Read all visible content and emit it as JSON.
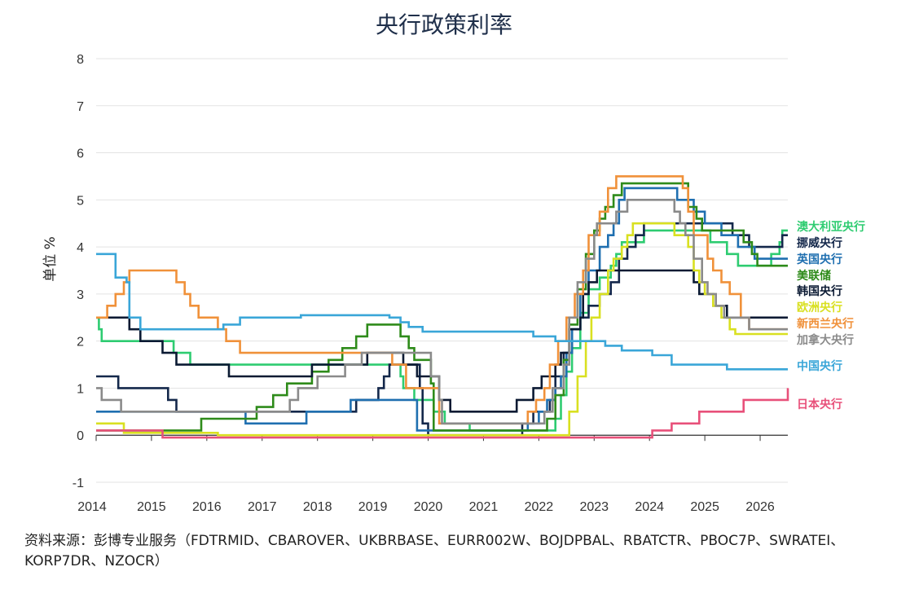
{
  "chart_data": {
    "type": "line",
    "title": "央行政策利率",
    "ylabel": "单位 %",
    "xlabel": "",
    "xlim": [
      2014.0,
      2026.5
    ],
    "ylim": [
      -1,
      8
    ],
    "yticks": [
      -1,
      0,
      1,
      2,
      3,
      4,
      5,
      6,
      7,
      8
    ],
    "xticks": [
      "2014",
      "2015",
      "2016",
      "2017",
      "2018",
      "2019",
      "2020",
      "2021",
      "2022",
      "2023",
      "2024",
      "2025",
      "2026"
    ],
    "grid": true,
    "legend": "right, labels at line ends",
    "series": [
      {
        "name": "澳大利亚央行",
        "color": "#2ecc71",
        "points": [
          [
            2014.0,
            2.5
          ],
          [
            2014.05,
            2.25
          ],
          [
            2014.1,
            2.0
          ],
          [
            2015.4,
            1.75
          ],
          [
            2015.7,
            1.5
          ],
          [
            2017.4,
            1.5
          ],
          [
            2019.4,
            1.5
          ],
          [
            2019.5,
            1.25
          ],
          [
            2019.55,
            1.0
          ],
          [
            2019.75,
            0.75
          ],
          [
            2020.1,
            0.5
          ],
          [
            2020.3,
            0.25
          ],
          [
            2020.75,
            0.1
          ],
          [
            2022.25,
            0.1
          ],
          [
            2022.3,
            0.35
          ],
          [
            2022.4,
            0.85
          ],
          [
            2022.5,
            1.35
          ],
          [
            2022.6,
            1.85
          ],
          [
            2022.75,
            2.6
          ],
          [
            2022.9,
            3.1
          ],
          [
            2023.1,
            3.35
          ],
          [
            2023.3,
            3.6
          ],
          [
            2023.4,
            3.85
          ],
          [
            2023.5,
            4.1
          ],
          [
            2023.9,
            4.35
          ],
          [
            2025.1,
            4.1
          ],
          [
            2025.4,
            3.85
          ],
          [
            2025.6,
            3.6
          ],
          [
            2026.2,
            3.85
          ],
          [
            2026.35,
            4.1
          ],
          [
            2026.4,
            4.35
          ]
        ]
      },
      {
        "name": "挪威央行",
        "color": "#14284b",
        "points": [
          [
            2014.0,
            1.25
          ],
          [
            2014.35,
            1.25
          ],
          [
            2014.4,
            1.0
          ],
          [
            2015.3,
            0.75
          ],
          [
            2015.45,
            0.5
          ],
          [
            2015.9,
            0.5
          ],
          [
            2017.5,
            0.5
          ],
          [
            2018.7,
            0.75
          ],
          [
            2019.1,
            1.0
          ],
          [
            2019.2,
            1.25
          ],
          [
            2019.3,
            1.5
          ],
          [
            2019.7,
            1.5
          ],
          [
            2019.85,
            1.0
          ],
          [
            2019.9,
            0.25
          ],
          [
            2020.0,
            0.0
          ],
          [
            2021.4,
            0.0
          ],
          [
            2021.7,
            0.25
          ],
          [
            2021.9,
            0.5
          ],
          [
            2022.2,
            0.75
          ],
          [
            2022.3,
            1.25
          ],
          [
            2022.45,
            1.75
          ],
          [
            2022.6,
            2.25
          ],
          [
            2022.75,
            2.5
          ],
          [
            2022.9,
            2.75
          ],
          [
            2023.1,
            3.0
          ],
          [
            2023.3,
            3.25
          ],
          [
            2023.45,
            3.75
          ],
          [
            2023.6,
            4.0
          ],
          [
            2023.75,
            4.25
          ],
          [
            2023.9,
            4.5
          ],
          [
            2025.5,
            4.25
          ],
          [
            2025.8,
            4.0
          ],
          [
            2026.3,
            4.0
          ],
          [
            2026.4,
            4.25
          ]
        ]
      },
      {
        "name": "英国央行",
        "color": "#1f6fb0",
        "points": [
          [
            2014.0,
            0.5
          ],
          [
            2015.7,
            0.5
          ],
          [
            2016.7,
            0.25
          ],
          [
            2017.8,
            0.5
          ],
          [
            2018.6,
            0.75
          ],
          [
            2019.7,
            0.75
          ],
          [
            2019.8,
            0.1
          ],
          [
            2021.6,
            0.1
          ],
          [
            2021.8,
            0.25
          ],
          [
            2022.0,
            0.5
          ],
          [
            2022.15,
            0.75
          ],
          [
            2022.3,
            1.0
          ],
          [
            2022.4,
            1.25
          ],
          [
            2022.5,
            1.75
          ],
          [
            2022.6,
            2.25
          ],
          [
            2022.75,
            3.0
          ],
          [
            2022.9,
            3.5
          ],
          [
            2023.1,
            4.0
          ],
          [
            2023.25,
            4.25
          ],
          [
            2023.35,
            4.5
          ],
          [
            2023.45,
            5.0
          ],
          [
            2023.55,
            5.25
          ],
          [
            2024.5,
            5.0
          ],
          [
            2024.8,
            4.75
          ],
          [
            2025.0,
            4.5
          ],
          [
            2025.3,
            4.25
          ],
          [
            2025.6,
            4.0
          ],
          [
            2025.9,
            3.75
          ],
          [
            2026.5,
            3.75
          ]
        ]
      },
      {
        "name": "美联储",
        "color": "#2e8b1a",
        "points": [
          [
            2014.0,
            0.1
          ],
          [
            2015.9,
            0.35
          ],
          [
            2016.9,
            0.6
          ],
          [
            2017.2,
            0.85
          ],
          [
            2017.45,
            1.1
          ],
          [
            2017.9,
            1.35
          ],
          [
            2018.2,
            1.6
          ],
          [
            2018.45,
            1.85
          ],
          [
            2018.7,
            2.1
          ],
          [
            2018.9,
            2.35
          ],
          [
            2019.5,
            2.1
          ],
          [
            2019.65,
            1.85
          ],
          [
            2019.75,
            1.6
          ],
          [
            2020.05,
            1.1
          ],
          [
            2020.1,
            0.1
          ],
          [
            2022.15,
            0.35
          ],
          [
            2022.3,
            0.85
          ],
          [
            2022.45,
            1.6
          ],
          [
            2022.55,
            2.35
          ],
          [
            2022.7,
            3.1
          ],
          [
            2022.85,
            3.85
          ],
          [
            2023.0,
            4.35
          ],
          [
            2023.1,
            4.6
          ],
          [
            2023.2,
            4.85
          ],
          [
            2023.35,
            5.1
          ],
          [
            2023.5,
            5.35
          ],
          [
            2024.7,
            4.85
          ],
          [
            2024.85,
            4.6
          ],
          [
            2024.95,
            4.35
          ],
          [
            2025.7,
            4.1
          ],
          [
            2025.85,
            3.85
          ],
          [
            2025.95,
            3.6
          ],
          [
            2026.5,
            3.6
          ]
        ]
      },
      {
        "name": "韩国央行",
        "color": "#0b1a33",
        "points": [
          [
            2014.0,
            2.5
          ],
          [
            2014.6,
            2.25
          ],
          [
            2014.8,
            2.0
          ],
          [
            2015.2,
            1.75
          ],
          [
            2015.45,
            1.5
          ],
          [
            2016.4,
            1.25
          ],
          [
            2017.9,
            1.5
          ],
          [
            2018.9,
            1.75
          ],
          [
            2019.55,
            1.5
          ],
          [
            2019.8,
            1.25
          ],
          [
            2020.2,
            0.75
          ],
          [
            2020.4,
            0.5
          ],
          [
            2021.6,
            0.75
          ],
          [
            2021.9,
            1.0
          ],
          [
            2022.05,
            1.25
          ],
          [
            2022.3,
            1.5
          ],
          [
            2022.4,
            1.75
          ],
          [
            2022.55,
            2.25
          ],
          [
            2022.75,
            2.5
          ],
          [
            2022.8,
            3.0
          ],
          [
            2022.9,
            3.25
          ],
          [
            2023.05,
            3.5
          ],
          [
            2024.8,
            3.25
          ],
          [
            2024.9,
            3.0
          ],
          [
            2025.15,
            2.75
          ],
          [
            2025.4,
            2.5
          ],
          [
            2026.5,
            2.5
          ]
        ]
      },
      {
        "name": "欧洲央行",
        "color": "#d9e021",
        "points": [
          [
            2014.0,
            0.25
          ],
          [
            2014.5,
            0.05
          ],
          [
            2015.2,
            0.05
          ],
          [
            2016.2,
            0.0
          ],
          [
            2022.5,
            0.0
          ],
          [
            2022.55,
            0.5
          ],
          [
            2022.7,
            1.25
          ],
          [
            2022.85,
            2.0
          ],
          [
            2022.95,
            2.5
          ],
          [
            2023.1,
            3.0
          ],
          [
            2023.25,
            3.5
          ],
          [
            2023.35,
            3.75
          ],
          [
            2023.5,
            4.0
          ],
          [
            2023.6,
            4.25
          ],
          [
            2023.7,
            4.5
          ],
          [
            2024.45,
            4.25
          ],
          [
            2024.7,
            4.0
          ],
          [
            2024.8,
            3.5
          ],
          [
            2024.9,
            3.25
          ],
          [
            2025.0,
            3.0
          ],
          [
            2025.15,
            2.75
          ],
          [
            2025.3,
            2.5
          ],
          [
            2025.45,
            2.25
          ],
          [
            2025.55,
            2.15
          ],
          [
            2026.5,
            2.15
          ]
        ]
      },
      {
        "name": "新西兰央行",
        "color": "#f0913a",
        "points": [
          [
            2014.0,
            2.5
          ],
          [
            2014.2,
            2.75
          ],
          [
            2014.35,
            3.0
          ],
          [
            2014.5,
            3.25
          ],
          [
            2014.6,
            3.5
          ],
          [
            2015.45,
            3.25
          ],
          [
            2015.6,
            3.0
          ],
          [
            2015.7,
            2.75
          ],
          [
            2015.85,
            2.5
          ],
          [
            2016.2,
            2.25
          ],
          [
            2016.35,
            2.0
          ],
          [
            2016.6,
            1.75
          ],
          [
            2018.8,
            1.75
          ],
          [
            2019.35,
            1.5
          ],
          [
            2019.6,
            1.0
          ],
          [
            2020.2,
            0.25
          ],
          [
            2021.6,
            0.25
          ],
          [
            2021.8,
            0.5
          ],
          [
            2021.95,
            0.75
          ],
          [
            2022.1,
            1.0
          ],
          [
            2022.2,
            1.5
          ],
          [
            2022.35,
            2.0
          ],
          [
            2022.5,
            2.5
          ],
          [
            2022.65,
            3.0
          ],
          [
            2022.8,
            3.5
          ],
          [
            2022.9,
            4.25
          ],
          [
            2023.1,
            4.75
          ],
          [
            2023.25,
            5.25
          ],
          [
            2023.4,
            5.5
          ],
          [
            2024.6,
            5.25
          ],
          [
            2024.7,
            4.75
          ],
          [
            2024.8,
            4.25
          ],
          [
            2025.05,
            3.75
          ],
          [
            2025.15,
            3.5
          ],
          [
            2025.3,
            3.25
          ],
          [
            2025.45,
            3.0
          ],
          [
            2025.65,
            2.5
          ],
          [
            2025.8,
            2.25
          ],
          [
            2026.5,
            2.25
          ]
        ]
      },
      {
        "name": "加拿大央行",
        "color": "#8a8a8a",
        "points": [
          [
            2014.0,
            1.0
          ],
          [
            2014.05,
            1.0
          ],
          [
            2014.1,
            0.75
          ],
          [
            2014.4,
            0.75
          ],
          [
            2014.45,
            0.5
          ],
          [
            2017.5,
            0.75
          ],
          [
            2017.65,
            1.0
          ],
          [
            2018.0,
            1.25
          ],
          [
            2018.5,
            1.5
          ],
          [
            2018.8,
            1.75
          ],
          [
            2020.05,
            1.25
          ],
          [
            2020.2,
            0.75
          ],
          [
            2020.25,
            0.25
          ],
          [
            2022.1,
            0.5
          ],
          [
            2022.25,
            1.0
          ],
          [
            2022.45,
            1.5
          ],
          [
            2022.55,
            2.5
          ],
          [
            2022.7,
            3.25
          ],
          [
            2022.85,
            3.75
          ],
          [
            2023.0,
            4.25
          ],
          [
            2023.05,
            4.5
          ],
          [
            2023.4,
            4.75
          ],
          [
            2023.6,
            5.0
          ],
          [
            2024.45,
            4.75
          ],
          [
            2024.55,
            4.5
          ],
          [
            2024.65,
            4.25
          ],
          [
            2024.8,
            3.75
          ],
          [
            2024.95,
            3.25
          ],
          [
            2025.05,
            3.0
          ],
          [
            2025.2,
            2.75
          ],
          [
            2025.35,
            2.5
          ],
          [
            2025.8,
            2.25
          ],
          [
            2026.5,
            2.25
          ]
        ]
      },
      {
        "name": "中国央行",
        "color": "#3aa6d8",
        "points": [
          [
            2014.0,
            3.85
          ],
          [
            2014.3,
            3.85
          ],
          [
            2014.35,
            3.35
          ],
          [
            2014.5,
            3.35
          ],
          [
            2014.55,
            3.25
          ],
          [
            2014.6,
            2.5
          ],
          [
            2014.8,
            2.25
          ],
          [
            2015.6,
            2.25
          ],
          [
            2016.1,
            2.25
          ],
          [
            2016.3,
            2.35
          ],
          [
            2016.6,
            2.5
          ],
          [
            2017.7,
            2.55
          ],
          [
            2019.3,
            2.5
          ],
          [
            2019.5,
            2.4
          ],
          [
            2019.65,
            2.3
          ],
          [
            2019.9,
            2.2
          ],
          [
            2020.1,
            2.2
          ],
          [
            2021.9,
            2.1
          ],
          [
            2022.3,
            2.0
          ],
          [
            2023.2,
            1.9
          ],
          [
            2023.5,
            1.8
          ],
          [
            2024.05,
            1.7
          ],
          [
            2024.4,
            1.5
          ],
          [
            2024.75,
            1.5
          ],
          [
            2025.4,
            1.4
          ],
          [
            2026.5,
            1.4
          ]
        ]
      },
      {
        "name": "日本央行",
        "color": "#e8507a",
        "points": [
          [
            2014.0,
            0.1
          ],
          [
            2015.15,
            0.1
          ],
          [
            2015.2,
            -0.05
          ],
          [
            2022.1,
            -0.05
          ],
          [
            2024.0,
            -0.05
          ],
          [
            2024.05,
            0.1
          ],
          [
            2024.4,
            0.25
          ],
          [
            2024.9,
            0.5
          ],
          [
            2025.55,
            0.5
          ],
          [
            2025.7,
            0.75
          ],
          [
            2026.45,
            0.75
          ],
          [
            2026.5,
            1.0
          ]
        ]
      }
    ]
  },
  "source_text": "资料来源：彭博专业服务（FDTRMID、CBAROVER、UKBRBASE、EURR002W、BOJDPBAL、RBATCTR、PBOC7P、SWRATEI、KORP7DR、NZOCR）"
}
